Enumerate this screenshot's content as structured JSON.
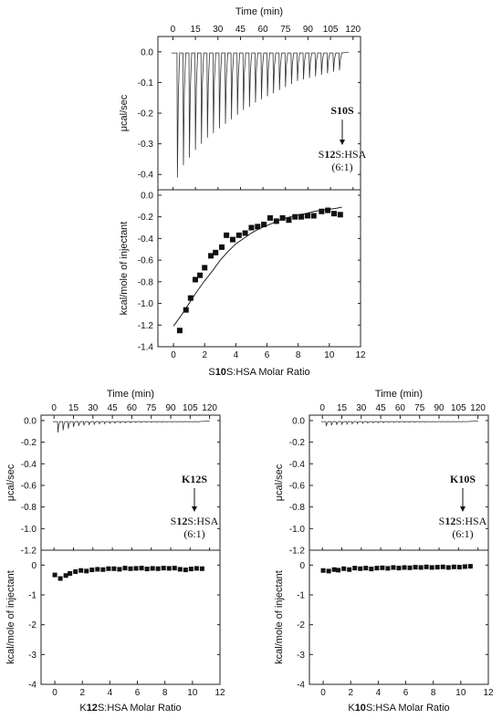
{
  "chart_data": [
    {
      "id": "S10S",
      "type": "scatter",
      "top_panel": {
        "xlabel": "Time (min)",
        "ylabel": "μcal/sec",
        "xlim": [
          -10,
          125
        ],
        "ylim": [
          -0.45,
          0.05
        ],
        "xticks": [
          0,
          15,
          30,
          45,
          60,
          75,
          90,
          105,
          120
        ],
        "yticks": [
          0.0,
          -0.1,
          -0.2,
          -0.3,
          -0.4
        ],
        "ytick_labels": [
          "0.0",
          "-0.1",
          "-0.2",
          "-0.3",
          "-0.4"
        ],
        "injection_times": [
          3,
          7,
          11,
          15,
          19,
          23,
          27,
          31,
          35,
          39,
          43,
          47,
          51,
          55,
          59,
          63,
          67,
          71,
          75,
          79,
          83,
          87,
          91,
          95,
          99,
          103,
          107,
          111
        ],
        "peak_minima": [
          -0.41,
          -0.37,
          -0.345,
          -0.32,
          -0.3,
          -0.28,
          -0.265,
          -0.25,
          -0.235,
          -0.22,
          -0.205,
          -0.19,
          -0.18,
          -0.165,
          -0.155,
          -0.145,
          -0.135,
          -0.125,
          -0.115,
          -0.105,
          -0.095,
          -0.09,
          -0.085,
          -0.08,
          -0.075,
          -0.07,
          -0.065,
          -0.06
        ],
        "annotation": {
          "ligand": "S10S",
          "cell_pre": "S",
          "cell_bold": "12",
          "cell_post": "S:HSA",
          "ratio": "(6:1)"
        }
      },
      "bottom_panel": {
        "xlabel_pre": "S",
        "xlabel_bold": "10",
        "xlabel_post": "S:HSA Molar Ratio",
        "ylabel": "kcal/mole of injectant",
        "xlim": [
          -1,
          12
        ],
        "ylim": [
          -1.4,
          0.05
        ],
        "xticks": [
          0,
          2,
          4,
          6,
          8,
          10,
          12
        ],
        "yticks": [
          0.0,
          -0.2,
          -0.4,
          -0.6,
          -0.8,
          -1.0,
          -1.2,
          -1.4
        ],
        "ytick_labels": [
          "0.0",
          "-0.2",
          "-0.4",
          "-0.6",
          "-0.8",
          "-1.0",
          "-1.2",
          "-1.4"
        ],
        "points": [
          [
            0.4,
            -1.25
          ],
          [
            0.8,
            -1.06
          ],
          [
            1.1,
            -0.95
          ],
          [
            1.4,
            -0.78
          ],
          [
            1.7,
            -0.74
          ],
          [
            2.0,
            -0.67
          ],
          [
            2.4,
            -0.56
          ],
          [
            2.7,
            -0.53
          ],
          [
            3.1,
            -0.48
          ],
          [
            3.4,
            -0.37
          ],
          [
            3.8,
            -0.41
          ],
          [
            4.2,
            -0.37
          ],
          [
            4.6,
            -0.35
          ],
          [
            5.0,
            -0.3
          ],
          [
            5.4,
            -0.29
          ],
          [
            5.8,
            -0.27
          ],
          [
            6.2,
            -0.21
          ],
          [
            6.6,
            -0.24
          ],
          [
            7.0,
            -0.21
          ],
          [
            7.4,
            -0.23
          ],
          [
            7.8,
            -0.2
          ],
          [
            8.2,
            -0.2
          ],
          [
            8.6,
            -0.19
          ],
          [
            9.0,
            -0.19
          ],
          [
            9.5,
            -0.15
          ],
          [
            9.9,
            -0.14
          ],
          [
            10.3,
            -0.17
          ],
          [
            10.7,
            -0.18
          ]
        ],
        "fit": [
          [
            0.0,
            -1.21
          ],
          [
            0.5,
            -1.11
          ],
          [
            1.0,
            -1.0
          ],
          [
            1.5,
            -0.89
          ],
          [
            2.0,
            -0.79
          ],
          [
            2.5,
            -0.7
          ],
          [
            3.0,
            -0.6
          ],
          [
            3.5,
            -0.52
          ],
          [
            4.0,
            -0.45
          ],
          [
            4.5,
            -0.4
          ],
          [
            5.0,
            -0.35
          ],
          [
            5.5,
            -0.31
          ],
          [
            6.0,
            -0.28
          ],
          [
            6.5,
            -0.25
          ],
          [
            7.0,
            -0.22
          ],
          [
            7.5,
            -0.2
          ],
          [
            8.0,
            -0.18
          ],
          [
            8.5,
            -0.17
          ],
          [
            9.0,
            -0.15
          ],
          [
            9.5,
            -0.14
          ],
          [
            10.0,
            -0.13
          ],
          [
            10.5,
            -0.12
          ],
          [
            10.8,
            -0.11
          ]
        ]
      }
    },
    {
      "id": "K12S",
      "type": "scatter",
      "top_panel": {
        "xlabel": "Time (min)",
        "ylabel": "μcal/sec",
        "xlim": [
          -10,
          128
        ],
        "ylim": [
          -1.2,
          0.05
        ],
        "xticks": [
          0,
          15,
          30,
          45,
          60,
          75,
          90,
          105,
          120
        ],
        "yticks": [
          0.0,
          -0.2,
          -0.4,
          -0.6,
          -0.8,
          -1.0,
          -1.2
        ],
        "ytick_labels": [
          "0.0",
          "-0.2",
          "-0.4",
          "-0.6",
          "-0.8",
          "-1.0",
          "-1.2"
        ],
        "injection_times": [
          3,
          7,
          11,
          15,
          19,
          23,
          27,
          31,
          35,
          39,
          43,
          47,
          51,
          55,
          59,
          63,
          67,
          71,
          75,
          79,
          83,
          87,
          91,
          95,
          99,
          103,
          107,
          111
        ],
        "peak_minima": [
          -0.11,
          -0.09,
          -0.075,
          -0.06,
          -0.05,
          -0.045,
          -0.04,
          -0.035,
          -0.03,
          -0.028,
          -0.026,
          -0.024,
          -0.022,
          -0.02,
          -0.02,
          -0.018,
          -0.018,
          -0.016,
          -0.016,
          -0.015,
          -0.015,
          -0.014,
          -0.014,
          -0.013,
          -0.013,
          -0.012,
          -0.012,
          -0.012
        ],
        "annotation": {
          "ligand": "K12S",
          "cell_pre": "S",
          "cell_bold": "12",
          "cell_post": "S:HSA",
          "ratio": "(6:1)"
        }
      },
      "bottom_panel": {
        "xlabel_pre": "K",
        "xlabel_bold": "12",
        "xlabel_post": "S:HSA Molar Ratio",
        "ylabel": "kcal/mole of injectant",
        "xlim": [
          -1,
          12
        ],
        "ylim": [
          -4,
          0.5
        ],
        "xticks": [
          0,
          2,
          4,
          6,
          8,
          10,
          12
        ],
        "yticks": [
          0,
          -1,
          -2,
          -3,
          -4
        ],
        "ytick_labels": [
          "0",
          "-1",
          "-2",
          "-3",
          "-4"
        ],
        "points": [
          [
            0.0,
            -0.33
          ],
          [
            0.4,
            -0.45
          ],
          [
            0.8,
            -0.35
          ],
          [
            1.1,
            -0.28
          ],
          [
            1.5,
            -0.22
          ],
          [
            1.9,
            -0.18
          ],
          [
            2.3,
            -0.2
          ],
          [
            2.7,
            -0.16
          ],
          [
            3.1,
            -0.14
          ],
          [
            3.5,
            -0.15
          ],
          [
            3.9,
            -0.12
          ],
          [
            4.3,
            -0.12
          ],
          [
            4.7,
            -0.14
          ],
          [
            5.1,
            -0.1
          ],
          [
            5.5,
            -0.12
          ],
          [
            5.9,
            -0.11
          ],
          [
            6.3,
            -0.1
          ],
          [
            6.7,
            -0.13
          ],
          [
            7.1,
            -0.11
          ],
          [
            7.5,
            -0.12
          ],
          [
            7.9,
            -0.1
          ],
          [
            8.3,
            -0.11
          ],
          [
            8.7,
            -0.1
          ],
          [
            9.1,
            -0.14
          ],
          [
            9.5,
            -0.16
          ],
          [
            9.9,
            -0.13
          ],
          [
            10.3,
            -0.11
          ],
          [
            10.7,
            -0.12
          ]
        ],
        "fit": []
      }
    },
    {
      "id": "K10S",
      "type": "scatter",
      "top_panel": {
        "xlabel": "Time (min)",
        "ylabel": "μcal/sec",
        "xlim": [
          -10,
          128
        ],
        "ylim": [
          -1.2,
          0.05
        ],
        "xticks": [
          0,
          15,
          30,
          45,
          60,
          75,
          90,
          105,
          120
        ],
        "yticks": [
          0.0,
          -0.2,
          -0.4,
          -0.6,
          -0.8,
          -1.0,
          -1.2
        ],
        "ytick_labels": [
          "0.0",
          "-0.2",
          "-0.4",
          "-0.6",
          "-0.8",
          "-1.0",
          "-1.2"
        ],
        "injection_times": [
          3,
          7,
          11,
          15,
          19,
          23,
          27,
          31,
          35,
          39,
          43,
          47,
          51,
          55,
          59,
          63,
          67,
          71,
          75,
          79,
          83,
          87,
          91,
          95,
          99,
          103,
          107,
          111
        ],
        "peak_minima": [
          -0.05,
          -0.045,
          -0.04,
          -0.035,
          -0.032,
          -0.03,
          -0.028,
          -0.026,
          -0.024,
          -0.022,
          -0.02,
          -0.02,
          -0.018,
          -0.018,
          -0.016,
          -0.016,
          -0.015,
          -0.015,
          -0.014,
          -0.014,
          -0.013,
          -0.013,
          -0.012,
          -0.012,
          -0.012,
          -0.011,
          -0.011,
          -0.011
        ],
        "annotation": {
          "ligand": "K10S",
          "cell_pre": "S",
          "cell_bold": "12",
          "cell_post": "S:HSA",
          "ratio": "(6:1)"
        }
      },
      "bottom_panel": {
        "xlabel_pre": "K",
        "xlabel_bold": "10",
        "xlabel_post": "S:HSA Molar Ratio",
        "ylabel": "kcal/mole of injectant",
        "xlim": [
          -1,
          12
        ],
        "ylim": [
          -4,
          0.5
        ],
        "xticks": [
          0,
          2,
          4,
          6,
          8,
          10,
          12
        ],
        "yticks": [
          0,
          -1,
          -2,
          -3,
          -4
        ],
        "ytick_labels": [
          "0",
          "-1",
          "-2",
          "-3",
          "-4"
        ],
        "points": [
          [
            0.0,
            -0.18
          ],
          [
            0.4,
            -0.2
          ],
          [
            0.8,
            -0.15
          ],
          [
            1.1,
            -0.17
          ],
          [
            1.5,
            -0.12
          ],
          [
            1.9,
            -0.15
          ],
          [
            2.3,
            -0.1
          ],
          [
            2.7,
            -0.12
          ],
          [
            3.1,
            -0.1
          ],
          [
            3.5,
            -0.13
          ],
          [
            3.9,
            -0.1
          ],
          [
            4.3,
            -0.09
          ],
          [
            4.7,
            -0.11
          ],
          [
            5.1,
            -0.08
          ],
          [
            5.5,
            -0.1
          ],
          [
            5.9,
            -0.08
          ],
          [
            6.3,
            -0.09
          ],
          [
            6.7,
            -0.07
          ],
          [
            7.1,
            -0.08
          ],
          [
            7.5,
            -0.06
          ],
          [
            7.9,
            -0.08
          ],
          [
            8.3,
            -0.07
          ],
          [
            8.7,
            -0.06
          ],
          [
            9.1,
            -0.08
          ],
          [
            9.5,
            -0.06
          ],
          [
            9.9,
            -0.07
          ],
          [
            10.3,
            -0.05
          ],
          [
            10.7,
            -0.04
          ]
        ],
        "fit": []
      }
    }
  ]
}
